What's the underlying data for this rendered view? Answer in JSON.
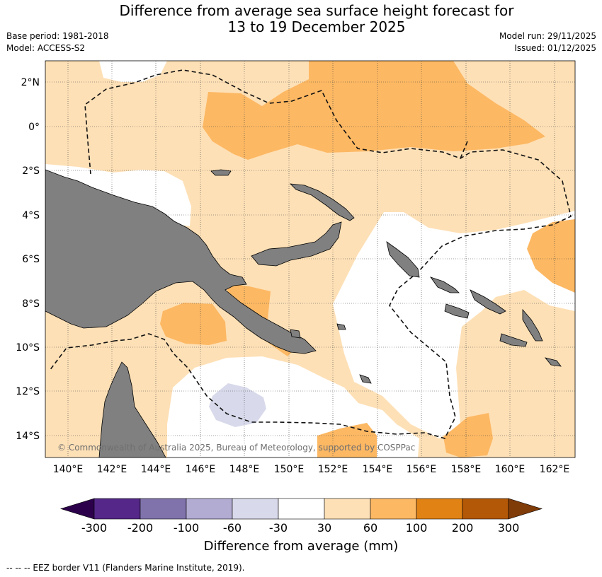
{
  "title": {
    "line1": "Difference from average sea surface height forecast for",
    "line2": "13 to 19 December 2025"
  },
  "meta": {
    "base_period": "Base period: 1981-2018",
    "model": "Model: ACCESS-S2",
    "model_run": "Model run: 29/11/2025",
    "issued": "Issued: 01/12/2025"
  },
  "map": {
    "lon_labels": [
      "140°E",
      "142°E",
      "144°E",
      "146°E",
      "148°E",
      "150°E",
      "152°E",
      "154°E",
      "156°E",
      "158°E",
      "160°E",
      "162°E"
    ],
    "lat_labels": [
      "2°N",
      "0°",
      "2°S",
      "4°S",
      "6°S",
      "8°S",
      "10°S",
      "12°S",
      "14°S"
    ],
    "copyright": "© Commonwealth of Australia 2025, Bureau of Meteorology, supported by COSPPac"
  },
  "colorbar": {
    "ticks": [
      "-300",
      "-200",
      "-100",
      "-60",
      "-30",
      "30",
      "60",
      "100",
      "200",
      "300"
    ],
    "label": "Difference from average (mm)",
    "colors": {
      "lt_-300": "#2d004b",
      "-300_-200": "#542788",
      "-200_-100": "#8073ac",
      "-100_-60": "#b2abd2",
      "-60_-30": "#d8daeb",
      "-30_30": "#ffffff",
      "30_60": "#fee0b6",
      "60_100": "#fdb863",
      "100_200": "#e08214",
      "200_300": "#b35806",
      "gt_300": "#7f3b08"
    }
  },
  "colors": {
    "land": "#808080",
    "band_30_60": "#fee0b6",
    "band_60_100": "#fdb863",
    "band_neg": "#d8daeb"
  },
  "footnote": "--  --  -- EEZ border V11 (Flanders Marine Institute, 2019)."
}
